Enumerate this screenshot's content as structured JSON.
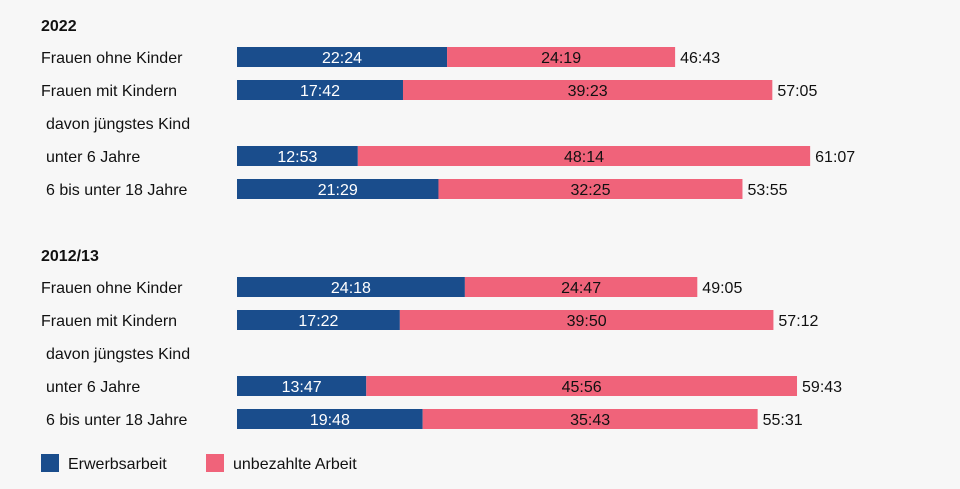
{
  "chart_data": {
    "type": "bar",
    "orientation": "horizontal",
    "stacked": true,
    "title": "",
    "xlabel": "",
    "ylabel": "",
    "series_colors": {
      "Erwerbsarbeit": "#1a4d8c",
      "unbezahlte Arbeit": "#f0637a"
    },
    "legend_position": "bottom-left",
    "legend": [
      {
        "name": "Erwerbsarbeit",
        "color": "#1a4d8c"
      },
      {
        "name": "unbezahlte Arbeit",
        "color": "#f0637a"
      }
    ],
    "groups": [
      {
        "title": "2022",
        "rows": [
          {
            "label": "Frauen ohne Kinder",
            "paid": "22:24",
            "unpaid": "24:19",
            "total": "46:43"
          },
          {
            "label": "Frauen mit Kindern",
            "paid": "17:42",
            "unpaid": "39:23",
            "total": "57:05"
          },
          {
            "label": "davon jüngstes Kind",
            "heading": true
          },
          {
            "label": "unter 6 Jahre",
            "paid": "12:53",
            "unpaid": "48:14",
            "total": "61:07"
          },
          {
            "label": "6 bis unter 18 Jahre",
            "paid": "21:29",
            "unpaid": "32:25",
            "total": "53:55"
          }
        ]
      },
      {
        "title": "2012/13",
        "rows": [
          {
            "label": "Frauen ohne Kinder",
            "paid": "24:18",
            "unpaid": "24:47",
            "total": "49:05"
          },
          {
            "label": "Frauen mit Kindern",
            "paid": "17:22",
            "unpaid": "39:50",
            "total": "57:12"
          },
          {
            "label": "davon jüngstes Kind",
            "heading": true
          },
          {
            "label": "unter 6 Jahre",
            "paid": "13:47",
            "unpaid": "45:56",
            "total": "59:43"
          },
          {
            "label": "6 bis unter 18 Jahre",
            "paid": "19:48",
            "unpaid": "35:43",
            "total": "55:31"
          }
        ]
      }
    ]
  }
}
